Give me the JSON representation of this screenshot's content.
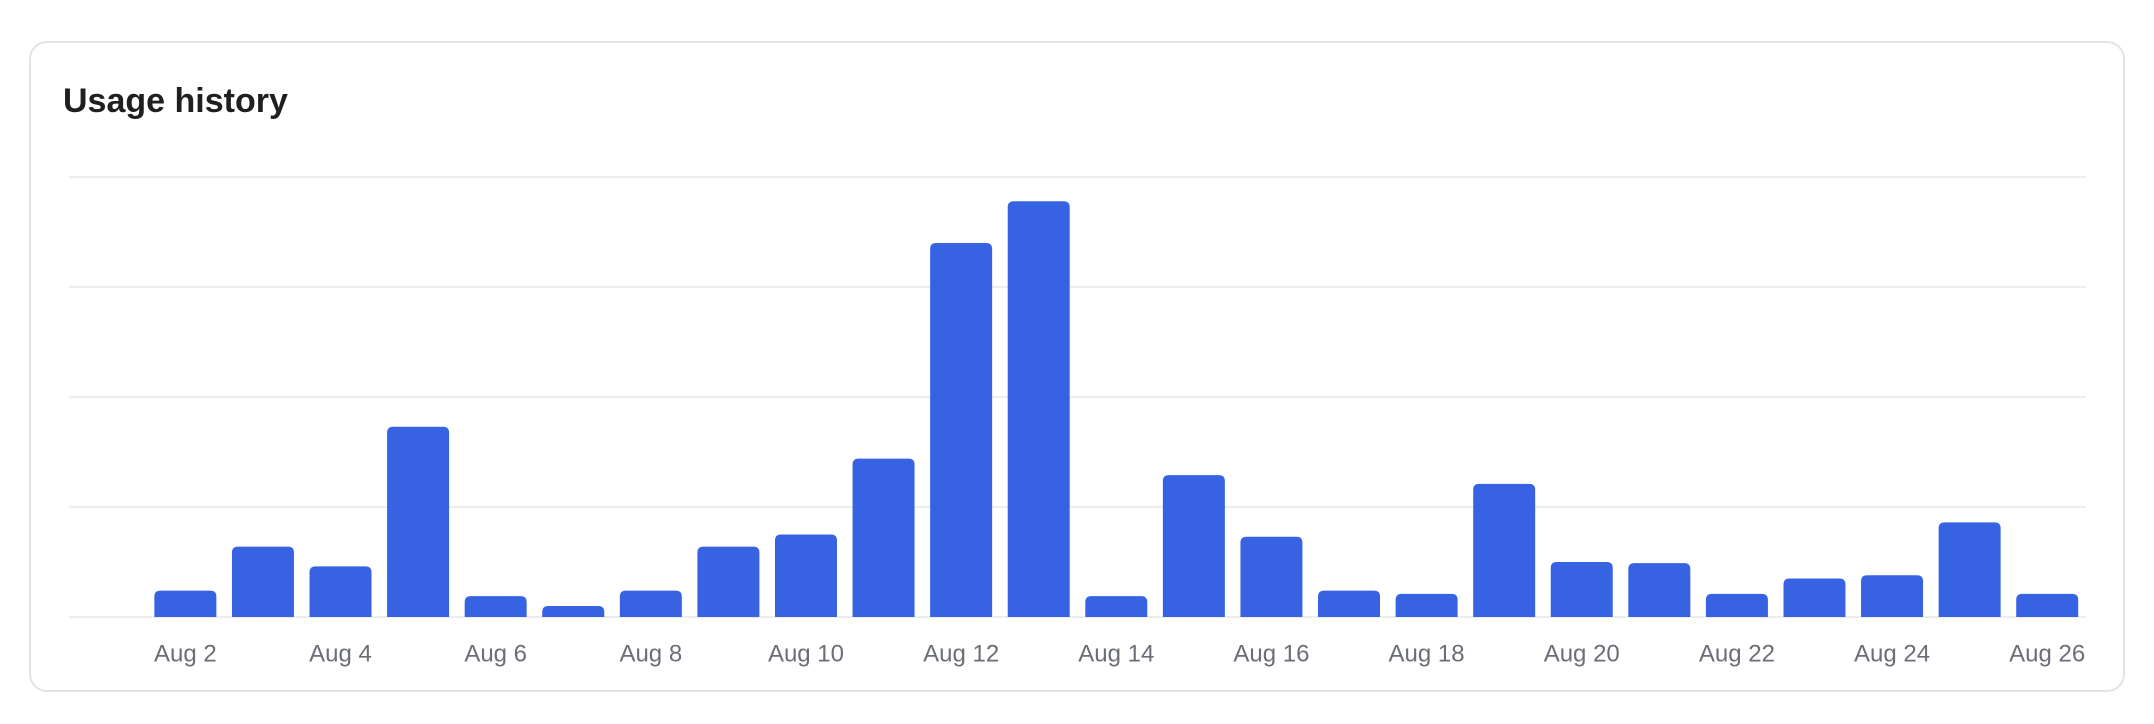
{
  "chart_data": {
    "type": "bar",
    "title": "Usage history",
    "categories": [
      "Aug 2",
      null,
      "Aug 4",
      null,
      "Aug 6",
      null,
      "Aug 8",
      null,
      "Aug 10",
      null,
      "Aug 12",
      null,
      "Aug 14",
      null,
      "Aug 16",
      null,
      "Aug 18",
      null,
      "Aug 20",
      null,
      "Aug 22",
      null,
      "Aug 24",
      null,
      "Aug 26"
    ],
    "values": [
      0.24,
      0.64,
      0.46,
      1.73,
      0.19,
      0.1,
      0.24,
      0.64,
      0.75,
      1.44,
      3.4,
      3.78,
      0.19,
      1.29,
      0.73,
      0.24,
      0.21,
      1.21,
      0.5,
      0.49,
      0.21,
      0.35,
      0.38,
      0.86,
      0.21
    ],
    "color": "#3763e3",
    "ylim": [
      0,
      4
    ],
    "yticks": [
      0,
      1,
      2,
      3,
      4
    ],
    "grid": true
  }
}
